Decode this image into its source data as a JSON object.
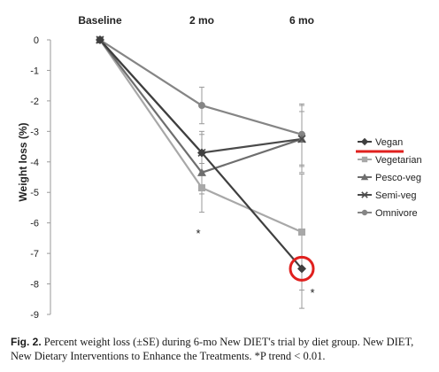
{
  "chart_data": {
    "type": "line",
    "categories": [
      "Baseline",
      "2 mo",
      "6 mo"
    ],
    "ylabel": "Weight loss (%)",
    "ylim": [
      -9,
      0
    ],
    "yticks": [
      0,
      -1,
      -2,
      -3,
      -4,
      -5,
      -6,
      -7,
      -8,
      -9
    ],
    "grid": false,
    "legend_position": "right",
    "series": [
      {
        "name": "Vegan",
        "values": [
          0,
          -3.7,
          -7.5
        ],
        "err": [
          0,
          0.6,
          1.3
        ],
        "color": "#3f3f3f",
        "marker": "diamond",
        "highlighted": true
      },
      {
        "name": "Vegetarian",
        "values": [
          0,
          -4.85,
          -6.3
        ],
        "err": [
          0,
          0.8,
          1.9
        ],
        "color": "#a8a8a8",
        "marker": "square",
        "highlighted": false
      },
      {
        "name": "Pesco-veg",
        "values": [
          0,
          -4.35,
          -3.25
        ],
        "err": [
          0,
          0.7,
          0.9
        ],
        "color": "#6e6e6e",
        "marker": "triangle",
        "highlighted": false
      },
      {
        "name": "Semi-veg",
        "values": [
          0,
          -3.7,
          -3.25
        ],
        "err": [
          0,
          0.7,
          1.1
        ],
        "color": "#4a4a4a",
        "marker": "x",
        "highlighted": false
      },
      {
        "name": "Omnivore",
        "values": [
          0,
          -2.15,
          -3.1
        ],
        "err": [
          0,
          0.6,
          1.0
        ],
        "color": "#858585",
        "marker": "circle",
        "highlighted": false
      }
    ],
    "annotations": [
      {
        "text": "*",
        "category": "2 mo",
        "y": -6.3
      },
      {
        "text": "*",
        "category": "6 mo",
        "y": -8.25
      }
    ],
    "highlight_color": "#e0201e"
  },
  "caption": {
    "label": "Fig. 2.",
    "text": "Percent weight loss (±SE) during 6-mo New DIET's trial by diet group. New DIET, New Dietary Interventions to Enhance the Treatments. *P trend < 0.01."
  }
}
